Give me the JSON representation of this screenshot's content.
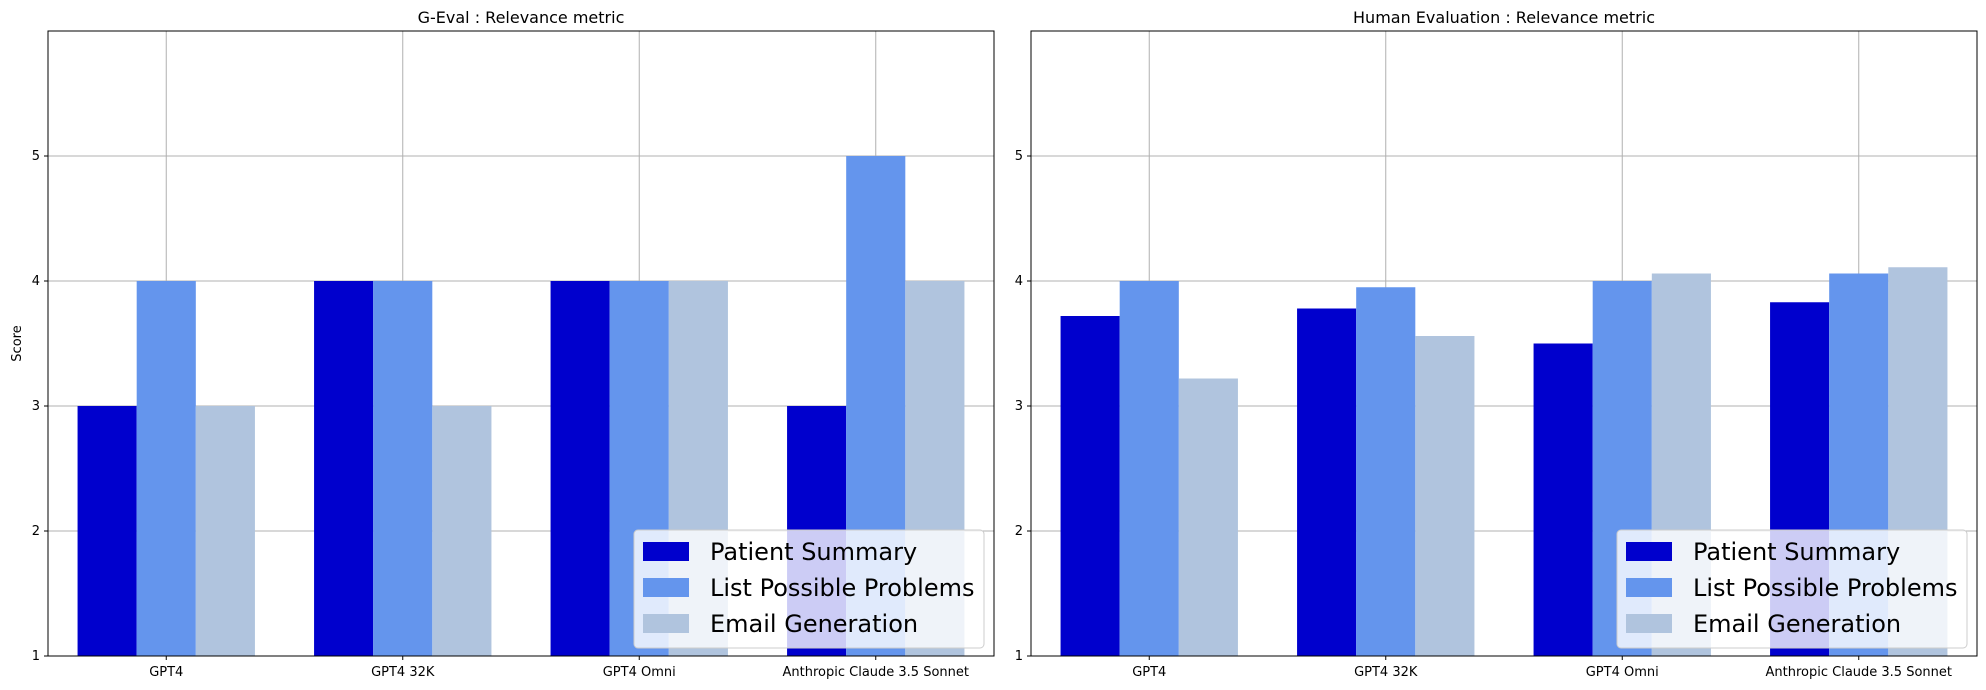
{
  "chart_data": [
    {
      "type": "bar",
      "title": "G-Eval : Relevance metric",
      "xlabel": "",
      "ylabel": "Score",
      "ylim": [
        1,
        6
      ],
      "yticks": [
        "1",
        "2",
        "3",
        "4",
        "5"
      ],
      "categories": [
        "GPT4",
        "GPT4 32K",
        "GPT4 Omni",
        "Anthropic Claude 3.5 Sonnet"
      ],
      "series": [
        {
          "name": "Patient Summary",
          "color": "#0000cd",
          "values": [
            3,
            4,
            4,
            3
          ]
        },
        {
          "name": "List Possible Problems",
          "color": "#6495ed",
          "values": [
            4,
            4,
            4,
            5
          ]
        },
        {
          "name": "Email Generation",
          "color": "#b0c4de",
          "values": [
            3,
            3,
            4,
            4
          ]
        }
      ],
      "grid": true,
      "legend_position": "lower-right"
    },
    {
      "type": "bar",
      "title": "Human Evaluation : Relevance metric",
      "xlabel": "",
      "ylabel": "",
      "ylim": [
        1,
        6
      ],
      "yticks": [
        "1",
        "2",
        "3",
        "4",
        "5"
      ],
      "categories": [
        "GPT4",
        "GPT4 32K",
        "GPT4 Omni",
        "Anthropic Claude 3.5 Sonnet"
      ],
      "series": [
        {
          "name": "Patient Summary",
          "color": "#0000cd",
          "values": [
            3.72,
            3.78,
            3.5,
            3.83
          ]
        },
        {
          "name": "List Possible Problems",
          "color": "#6495ed",
          "values": [
            4.0,
            3.95,
            4.0,
            4.06
          ]
        },
        {
          "name": "Email Generation",
          "color": "#b0c4de",
          "values": [
            3.22,
            3.56,
            4.06,
            4.11
          ]
        }
      ],
      "grid": true,
      "legend_position": "lower-right"
    }
  ]
}
